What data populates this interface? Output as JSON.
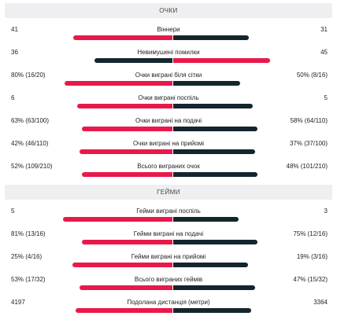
{
  "points_section": {
    "title": "ОЧКИ",
    "rows": [
      {
        "label": "Віннери",
        "home": "41",
        "away": "31",
        "home_share": 0.569,
        "home_leading": true
      },
      {
        "label": "Невимушені помилки",
        "home": "36",
        "away": "45",
        "home_share": 0.444,
        "home_leading": false
      },
      {
        "label": "Очки виграні біля сітки",
        "home": "80% (16/20)",
        "away": "50% (8/16)",
        "home_share": 0.615,
        "home_leading": true
      },
      {
        "label": "Очки виграні поспіль",
        "home": "6",
        "away": "5",
        "home_share": 0.545,
        "home_leading": true
      },
      {
        "label": "Очки виграні на подачі",
        "home": "63% (63/100)",
        "away": "58% (64/110)",
        "home_share": 0.52,
        "home_leading": true
      },
      {
        "label": "Очки виграні на прийомі",
        "home": "42% (46/110)",
        "away": "37% (37/100)",
        "home_share": 0.53,
        "home_leading": true
      },
      {
        "label": "Всього виграних очок",
        "home": "52% (109/210)",
        "away": "48% (101/210)",
        "home_share": 0.52,
        "home_leading": true
      }
    ]
  },
  "games_section": {
    "title": "ГЕЙМИ",
    "rows": [
      {
        "label": "Гейми виграні поспіль",
        "home": "5",
        "away": "3",
        "home_share": 0.625,
        "home_leading": true
      },
      {
        "label": "Гейми виграні на подачі",
        "home": "81% (13/16)",
        "away": "75% (12/16)",
        "home_share": 0.52,
        "home_leading": true
      },
      {
        "label": "Гейми виграні на прийомі",
        "home": "25% (4/16)",
        "away": "19% (3/16)",
        "home_share": 0.57,
        "home_leading": true
      },
      {
        "label": "Всього виграних геймів",
        "home": "53% (17/32)",
        "away": "47% (15/32)",
        "home_share": 0.53,
        "home_leading": true
      },
      {
        "label": "Подолана дистанція (метри)",
        "home": "4197",
        "away": "3364",
        "home_share": 0.555,
        "home_leading": true
      }
    ]
  },
  "colors": {
    "home_bar": "#e8194a",
    "away_bar": "#14252d",
    "header_bg": "#efeff1"
  }
}
